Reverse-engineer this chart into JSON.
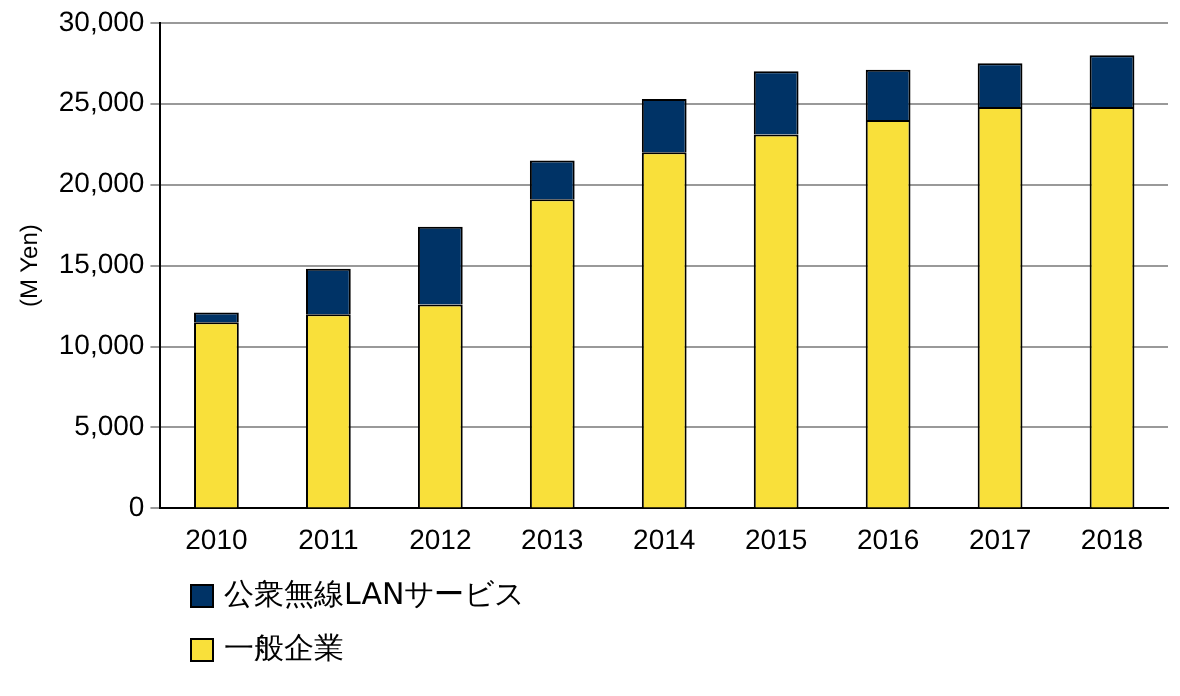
{
  "chart_data": {
    "type": "bar",
    "stacked": true,
    "ylabel": "(M Yen)",
    "categories": [
      "2010",
      "2011",
      "2012",
      "2013",
      "2014",
      "2015",
      "2016",
      "2017",
      "2018"
    ],
    "series": [
      {
        "name": "一般企業",
        "color": "#f9e03a",
        "values": [
          11500,
          12000,
          12600,
          19100,
          22000,
          23100,
          24000,
          24800,
          24800
        ]
      },
      {
        "name": "公衆無線LANサービス",
        "color": "#003366",
        "values": [
          600,
          2800,
          4800,
          2400,
          3300,
          3900,
          3100,
          2700,
          3200
        ]
      }
    ],
    "ylim": [
      0,
      30000
    ],
    "yticks": [
      {
        "value": 0,
        "label": "0"
      },
      {
        "value": 5000,
        "label": "5,000"
      },
      {
        "value": 10000,
        "label": "10,000"
      },
      {
        "value": 15000,
        "label": "15,000"
      },
      {
        "value": 20000,
        "label": "20,000"
      },
      {
        "value": 25000,
        "label": "25,000"
      },
      {
        "value": 30000,
        "label": "30,000"
      }
    ],
    "grid": "y",
    "legend": "bottom left"
  }
}
